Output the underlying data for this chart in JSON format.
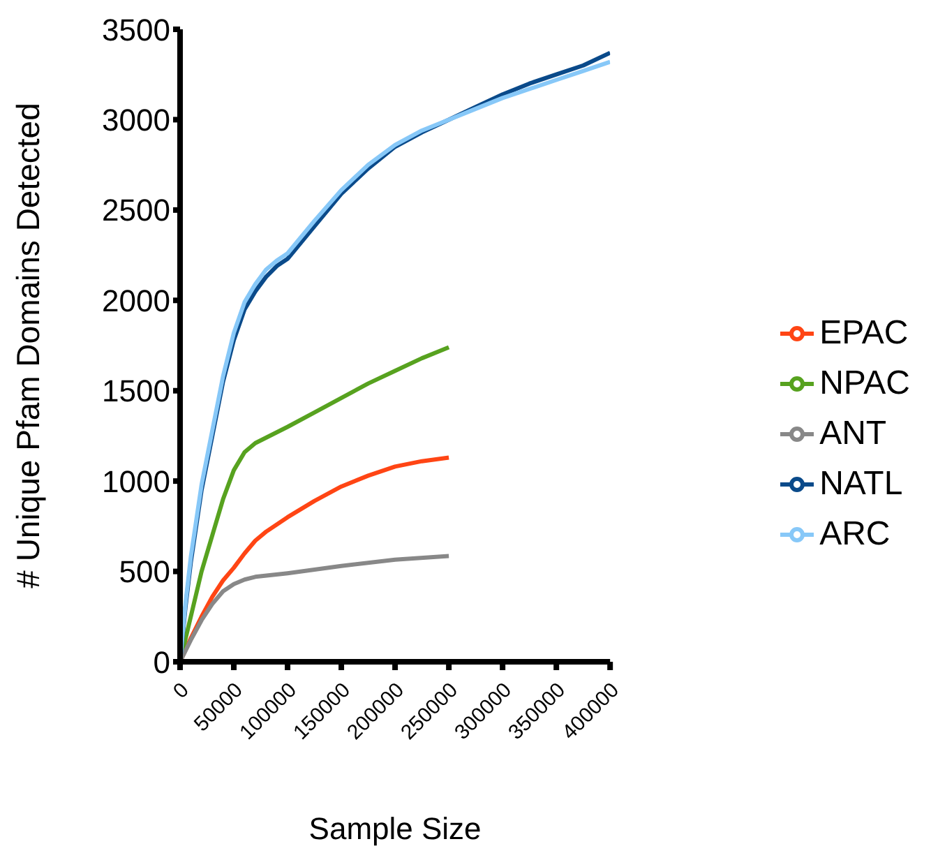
{
  "chart_data": {
    "type": "line",
    "xlabel": "Sample Size",
    "ylabel": "# Unique Pfam Domains Detected",
    "xlim": [
      0,
      400000
    ],
    "xticks": [
      0,
      50000,
      100000,
      150000,
      200000,
      250000,
      300000,
      350000,
      400000
    ],
    "ylim": [
      0,
      3500
    ],
    "yticks": [
      0,
      500,
      1000,
      1500,
      2000,
      2500,
      3000,
      3500
    ],
    "grid": false,
    "legend": "right",
    "marker": "none",
    "line_style": "solid",
    "series": [
      {
        "name": "EPAC",
        "color": "#ff4514",
        "x": [
          0,
          10000,
          20000,
          30000,
          40000,
          50000,
          60000,
          70000,
          80000,
          100000,
          125000,
          150000,
          175000,
          200000,
          225000,
          250000
        ],
        "values": [
          0,
          130,
          250,
          360,
          450,
          520,
          600,
          670,
          720,
          800,
          890,
          970,
          1030,
          1080,
          1110,
          1130
        ]
      },
      {
        "name": "NPAC",
        "color": "#57a21f",
        "x": [
          0,
          10000,
          20000,
          30000,
          40000,
          50000,
          60000,
          70000,
          80000,
          100000,
          125000,
          150000,
          175000,
          200000,
          225000,
          250000
        ],
        "values": [
          0,
          250,
          500,
          700,
          900,
          1060,
          1160,
          1210,
          1240,
          1300,
          1380,
          1460,
          1540,
          1610,
          1680,
          1740
        ]
      },
      {
        "name": "ANT",
        "color": "#888888",
        "x": [
          0,
          10000,
          20000,
          30000,
          40000,
          50000,
          60000,
          70000,
          100000,
          150000,
          200000,
          250000
        ],
        "values": [
          0,
          120,
          230,
          320,
          390,
          430,
          455,
          470,
          490,
          530,
          565,
          585
        ]
      },
      {
        "name": "NATL",
        "color": "#0a4a8a",
        "x": [
          0,
          5000,
          10000,
          20000,
          30000,
          40000,
          50000,
          60000,
          70000,
          80000,
          90000,
          100000,
          125000,
          150000,
          175000,
          200000,
          225000,
          250000,
          275000,
          300000,
          325000,
          350000,
          375000,
          400000
        ],
        "values": [
          0,
          300,
          550,
          950,
          1250,
          1550,
          1780,
          1950,
          2050,
          2130,
          2190,
          2230,
          2410,
          2590,
          2730,
          2850,
          2930,
          3000,
          3070,
          3140,
          3200,
          3250,
          3300,
          3370
        ]
      },
      {
        "name": "ARC",
        "color": "#87c8f8",
        "x": [
          0,
          5000,
          10000,
          20000,
          30000,
          40000,
          50000,
          60000,
          70000,
          80000,
          90000,
          100000,
          125000,
          150000,
          175000,
          200000,
          225000,
          250000,
          275000,
          300000,
          325000,
          350000,
          375000,
          400000
        ],
        "values": [
          0,
          320,
          580,
          980,
          1280,
          1580,
          1820,
          1990,
          2090,
          2170,
          2220,
          2260,
          2440,
          2610,
          2750,
          2860,
          2940,
          3000,
          3060,
          3120,
          3170,
          3220,
          3270,
          3320
        ]
      }
    ]
  }
}
